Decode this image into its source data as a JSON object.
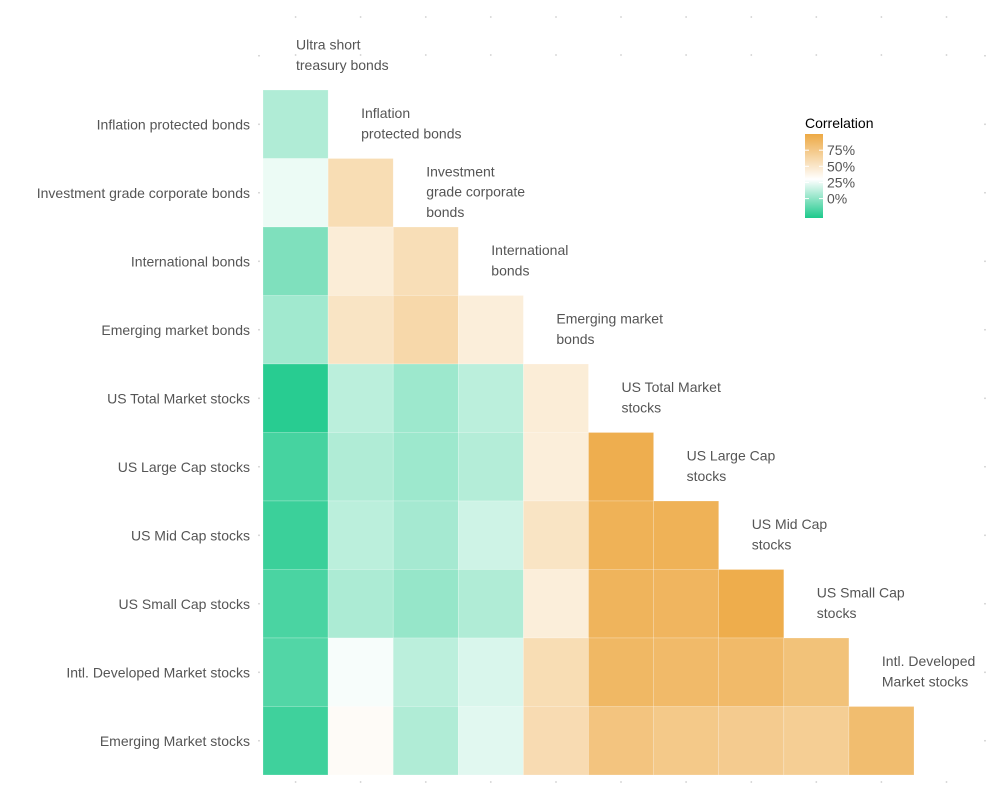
{
  "chart_data": {
    "type": "heatmap",
    "title": "",
    "assets": [
      "Ultra short treasury bonds",
      "Inflation protected bonds",
      "Investment grade corporate bonds",
      "International bonds",
      "Emerging market bonds",
      "US Total Market stocks",
      "US Large Cap stocks",
      "US Mid Cap stocks",
      "US Small Cap stocks",
      "Intl. Developed Market stocks",
      "Emerging Market stocks"
    ],
    "row_labels": [
      "Inflation protected bonds",
      "Investment grade corporate bonds",
      "International bonds",
      "Emerging market bonds",
      "US Total Market stocks",
      "US Large Cap stocks",
      "US Mid Cap stocks",
      "US Small Cap stocks",
      "Intl. Developed Market stocks",
      "Emerging Market stocks"
    ],
    "diagonal_labels": [
      [
        "Ultra short",
        "treasury bonds"
      ],
      [
        "Inflation",
        "protected bonds"
      ],
      [
        "Investment",
        "grade corporate",
        "bonds"
      ],
      [
        "International",
        "bonds"
      ],
      [
        "Emerging market",
        "bonds"
      ],
      [
        "US Total Market",
        "stocks"
      ],
      [
        "US Large Cap",
        "stocks"
      ],
      [
        "US Mid Cap",
        "stocks"
      ],
      [
        "US Small Cap",
        "stocks"
      ],
      [
        "Intl. Developed",
        "Market stocks"
      ]
    ],
    "correlations": [
      [
        0.09
      ],
      [
        0.25,
        0.58
      ],
      [
        -0.04,
        0.45,
        0.57
      ],
      [
        0.05,
        0.52,
        0.62,
        0.44
      ],
      [
        -0.27,
        0.12,
        0.04,
        0.12,
        0.45
      ],
      [
        -0.19,
        0.09,
        0.04,
        0.1,
        0.44,
        0.96
      ],
      [
        -0.22,
        0.12,
        0.06,
        0.17,
        0.52,
        0.93,
        0.93
      ],
      [
        -0.18,
        0.08,
        0.02,
        0.09,
        0.44,
        0.91,
        0.9,
        0.97
      ],
      [
        -0.16,
        0.28,
        0.12,
        0.2,
        0.58,
        0.88,
        0.86,
        0.86,
        0.8
      ],
      [
        -0.21,
        0.33,
        0.09,
        0.22,
        0.59,
        0.78,
        0.74,
        0.72,
        0.7,
        0.84
      ]
    ],
    "color_scale": {
      "low": "#1dc98b",
      "mid": "#ffffff",
      "high": "#eda944",
      "range": [
        -0.3,
        1.0
      ],
      "midpoint": 0.3
    },
    "legend": {
      "title": "Correlation",
      "breaks": [
        0.75,
        0.5,
        0.25,
        0.0
      ],
      "labels": [
        "75%",
        "50%",
        "25%",
        "0%"
      ],
      "position": "top-right"
    }
  }
}
